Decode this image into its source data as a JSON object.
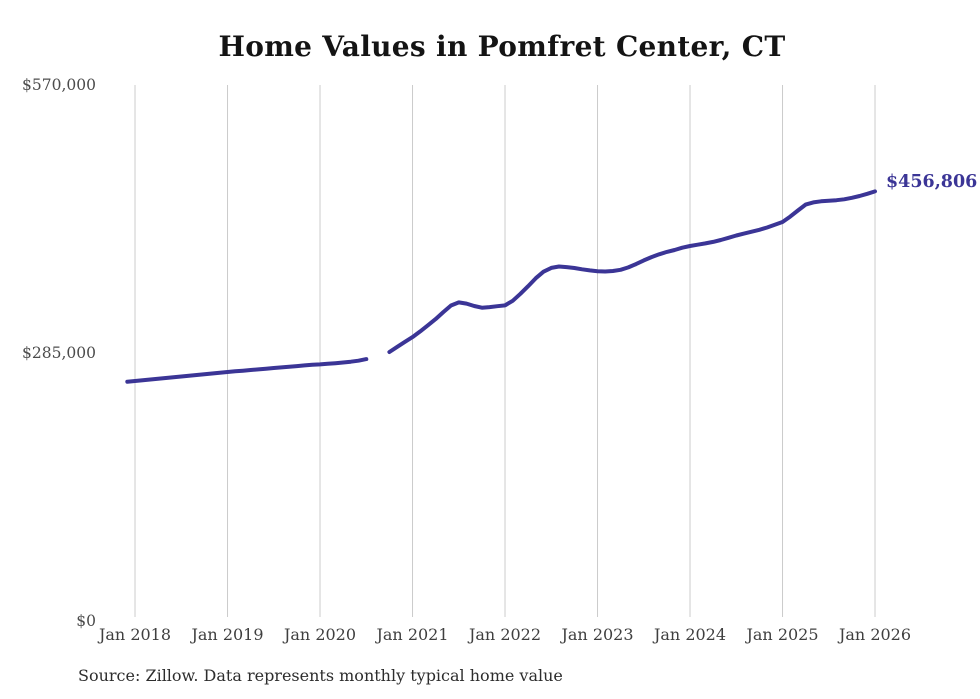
{
  "chart_data": {
    "type": "line",
    "title": "Home Values in Pomfret Center, CT",
    "series_name": "Monthly typical home value",
    "unit": "USD",
    "x_start": "2017-12",
    "x_interval": "month",
    "ylim": [
      0,
      570000
    ],
    "grid": "vertical-only",
    "legend": "none",
    "x_ticks": [
      {
        "month": 1,
        "label": "Jan 2018"
      },
      {
        "month": 13,
        "label": "Jan 2019"
      },
      {
        "month": 25,
        "label": "Jan 2020"
      },
      {
        "month": 37,
        "label": "Jan 2021"
      },
      {
        "month": 49,
        "label": "Jan 2022"
      },
      {
        "month": 61,
        "label": "Jan 2023"
      },
      {
        "month": 73,
        "label": "Jan 2024"
      },
      {
        "month": 85,
        "label": "Jan 2025"
      },
      {
        "month": 97,
        "label": "Jan 2026"
      }
    ],
    "y_ticks": [
      {
        "value": 570000,
        "label": "$570,000"
      },
      {
        "value": 285000,
        "label": "$285,000"
      },
      {
        "value": 0,
        "label": "$0"
      }
    ],
    "values": [
      254500,
      255200,
      256000,
      256800,
      257600,
      258400,
      259200,
      260000,
      260800,
      261600,
      262400,
      263200,
      264000,
      264800,
      265500,
      266200,
      266900,
      267600,
      268300,
      269000,
      269700,
      270400,
      271100,
      271800,
      272400,
      272900,
      273500,
      274200,
      274900,
      275700,
      276800,
      278500,
      null,
      null,
      286100,
      291500,
      296800,
      301900,
      308000,
      314500,
      321000,
      328500,
      335500,
      338800,
      337500,
      335000,
      333200,
      333800,
      334800,
      335600,
      340500,
      348000,
      356000,
      364500,
      371500,
      375500,
      377000,
      376400,
      375400,
      374000,
      372800,
      372000,
      371700,
      372200,
      373500,
      376000,
      379500,
      383500,
      387000,
      390000,
      392500,
      394500,
      397000,
      398800,
      400200,
      401600,
      403200,
      405200,
      407500,
      410000,
      412000,
      414000,
      416000,
      418500,
      421300,
      424300,
      430000,
      436500,
      442800,
      445200,
      446300,
      446900,
      447500,
      448500,
      450000,
      452000,
      454300,
      456806
    ],
    "end_value": 456806,
    "end_label": "$456,806",
    "colors": {
      "line": "#3b3596",
      "annotation": "#3b3596",
      "gridline": "#cccccc",
      "axis_text": "#4c4c4c",
      "title_text": "#141414"
    }
  },
  "footer": {
    "source_text": "Source: Zillow. Data represents monthly typical home value"
  }
}
